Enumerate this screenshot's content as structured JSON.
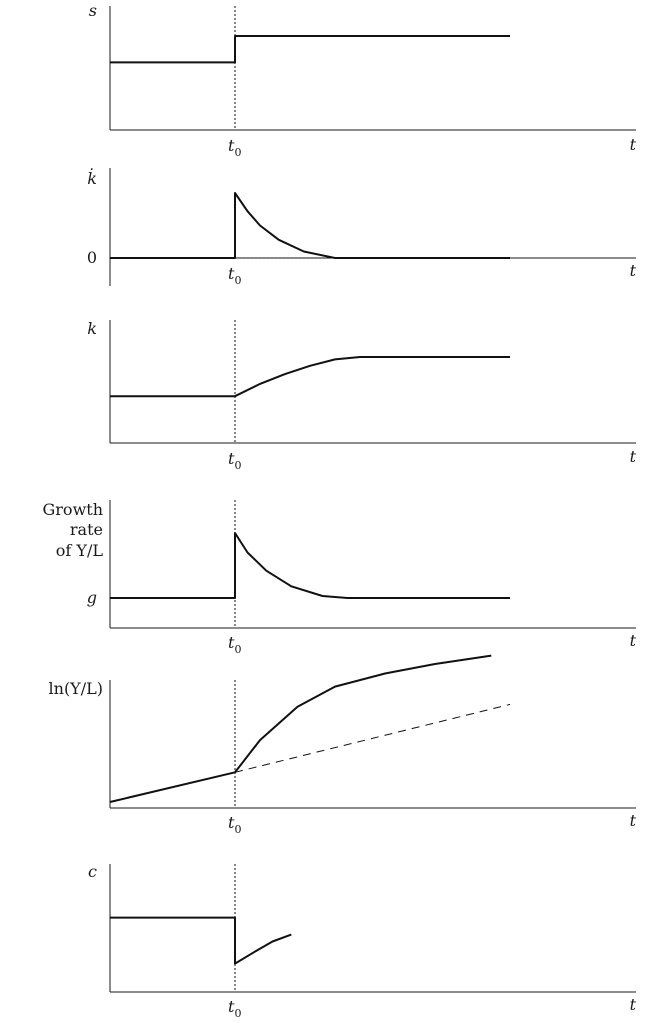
{
  "chart_data": [
    {
      "type": "line",
      "ylabel": "s",
      "xlabel": "t",
      "event_tick": "t0",
      "series": [
        {
          "x": [
            0,
            1,
            1,
            3.2
          ],
          "y": [
            0.45,
            0.45,
            1.0,
            1.0
          ]
        }
      ],
      "event_line": "vertical-dotted"
    },
    {
      "type": "line",
      "ylabel": "k̇",
      "xlabel": "t",
      "event_tick": "t0",
      "ytick_labels": [
        "0"
      ],
      "series": [
        {
          "x": [
            0,
            1,
            1,
            1.1,
            1.2,
            1.35,
            1.55,
            1.8,
            3.2
          ],
          "y": [
            0,
            0,
            1.0,
            0.72,
            0.5,
            0.28,
            0.1,
            0.0,
            0.0
          ]
        }
      ],
      "baseline": "horizontal-dotted"
    },
    {
      "type": "line",
      "ylabel": "k",
      "xlabel": "t",
      "event_tick": "t0",
      "series": [
        {
          "x": [
            0,
            1,
            1.2,
            1.4,
            1.6,
            1.8,
            2.0,
            3.2
          ],
          "y": [
            0.2,
            0.2,
            0.45,
            0.65,
            0.82,
            0.95,
            1.0,
            1.0
          ]
        }
      ],
      "event_line": "vertical-dotted"
    },
    {
      "type": "line",
      "ylabel_lines": [
        "Growth",
        "rate",
        "of Y/L"
      ],
      "ytick_labels": [
        "g"
      ],
      "xlabel": "t",
      "event_tick": "t0",
      "series": [
        {
          "x": [
            0,
            1,
            1,
            1.1,
            1.25,
            1.45,
            1.7,
            1.9,
            3.2
          ],
          "y": [
            0,
            0,
            1.0,
            0.7,
            0.42,
            0.18,
            0.03,
            0.0,
            0.0
          ]
        }
      ],
      "event_line": "vertical-dotted"
    },
    {
      "type": "line",
      "ylabel": "ln(Y/L)",
      "xlabel": "t",
      "event_tick": "t0",
      "series": [
        {
          "x": [
            0,
            1,
            1.2,
            1.5,
            1.8,
            2.2,
            2.6,
            3.05
          ],
          "y": [
            0.0,
            0.25,
            0.52,
            0.8,
            0.97,
            1.08,
            1.16,
            1.23
          ]
        },
        {
          "x": [
            1,
            3.2
          ],
          "y": [
            0.25,
            0.82
          ],
          "style": "dashed"
        }
      ],
      "event_line": "vertical-dotted"
    },
    {
      "type": "line",
      "ylabel": "c",
      "xlabel": "t",
      "event_tick": "t0",
      "series": [
        {
          "x": [
            0,
            1,
            1,
            1.15,
            1.3,
            1.45
          ],
          "y": [
            0.8,
            0.8,
            0.07,
            0.25,
            0.42,
            0.53
          ]
        }
      ],
      "event_line": "vertical-dotted"
    }
  ]
}
